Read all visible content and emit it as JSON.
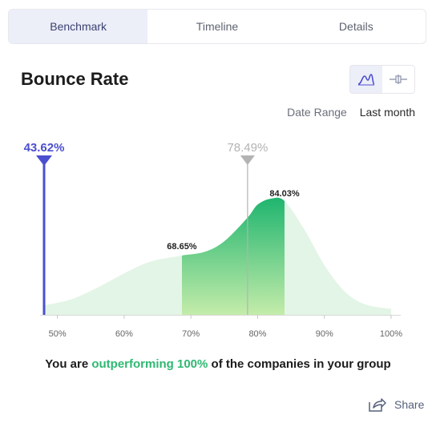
{
  "tabs": [
    {
      "label": "Benchmark",
      "active": true
    },
    {
      "label": "Timeline",
      "active": false
    },
    {
      "label": "Details",
      "active": false
    }
  ],
  "title": "Bounce Rate",
  "date_range": {
    "label": "Date Range",
    "value": "Last month"
  },
  "summary": {
    "before": "You are ",
    "highlight": "outperforming 100%",
    "after": " of the companies in your group"
  },
  "share_label": "Share",
  "icons": {
    "distribution": "distribution-curve-icon",
    "boxplot": "box-plot-icon",
    "share": "share-icon"
  },
  "colors": {
    "you": "#4b4fcf",
    "average": "#b3b3b3",
    "band_top": "#1fb56f",
    "band_bottom": "#c4ecaa",
    "tail": "#e3f5e6"
  },
  "chart_data": {
    "type": "area",
    "x_ticks": [
      "50%",
      "60%",
      "70%",
      "80%",
      "90%",
      "100%"
    ],
    "xlim": [
      48,
      100
    ],
    "curve": {
      "x": [
        48,
        52,
        56,
        60,
        64,
        68.65,
        72,
        75,
        78.49,
        80,
        82,
        84.03,
        87,
        90,
        93,
        96,
        100
      ],
      "y": [
        0.08,
        0.13,
        0.23,
        0.35,
        0.45,
        0.5,
        0.53,
        0.62,
        0.82,
        0.93,
        0.98,
        0.96,
        0.72,
        0.42,
        0.2,
        0.09,
        0.05
      ]
    },
    "band": {
      "from": 68.65,
      "to": 84.03,
      "labels": [
        "68.65%",
        "84.03%"
      ]
    },
    "you_marker": {
      "value": 43.62,
      "label": "43.62%"
    },
    "average_marker": {
      "value": 78.49,
      "label": "78.49%"
    }
  }
}
